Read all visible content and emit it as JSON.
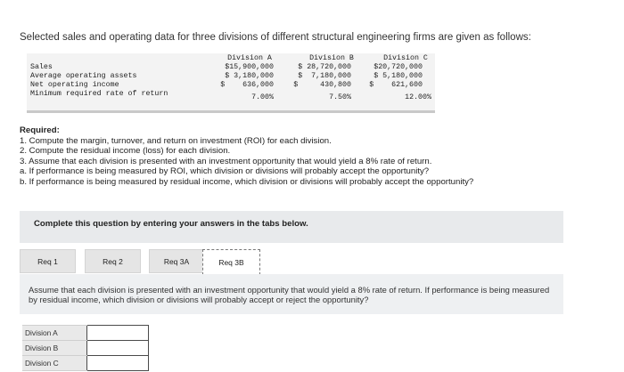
{
  "intro": "Selected sales and operating data for three divisions of different structural engineering firms are given as follows:",
  "data_table": {
    "headers": [
      "Division A",
      "Division B",
      "Division C"
    ],
    "rows": [
      {
        "label": "Sales",
        "values": [
          "$15,900,000",
          "$ 28,720,000",
          "$20,720,000"
        ]
      },
      {
        "label": "Average operating assets",
        "values": [
          "$ 3,180,000",
          "$  7,180,000",
          "$ 5,180,000"
        ]
      },
      {
        "label": "Net operating income",
        "values": [
          "$    636,000",
          "$     430,800",
          "$    621,600"
        ]
      },
      {
        "label": "Minimum required rate of return",
        "values": [
          "7.00%",
          "7.50%",
          "12.00%"
        ]
      }
    ]
  },
  "required": {
    "title": "Required:",
    "items": [
      "1. Compute the margin, turnover, and return on investment (ROI) for each division.",
      "2. Compute the residual income (loss) for each division.",
      "3. Assume that each division is presented with an investment opportunity that would yield a 8% rate of return.",
      "a. If performance is being measured by ROI, which division or divisions will probably accept the opportunity?",
      "b. If performance is being measured by residual income, which division or divisions will probably accept the opportunity?"
    ]
  },
  "instruction": "Complete this question by entering your answers in the tabs below.",
  "tabs": [
    "Req 1",
    "Req 2",
    "Req 3A",
    "Req 3B"
  ],
  "active_tab": "Req 3B",
  "panel_text": "Assume that each division is presented with an investment opportunity that would yield a 8% rate of return. If performance is being measured by residual income, which division or divisions will probably accept or reject the opportunity?",
  "answer_rows": [
    {
      "label": "Division A",
      "value": ""
    },
    {
      "label": "Division B",
      "value": ""
    },
    {
      "label": "Division C",
      "value": ""
    }
  ]
}
